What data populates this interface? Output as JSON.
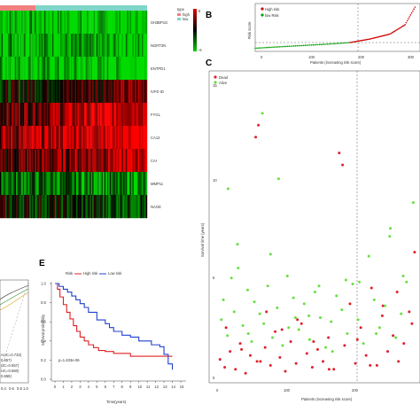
{
  "panels": {
    "a": {
      "genes": [
        "SH3BP1G",
        "NGRT3N",
        "ENTPD1",
        "IVFD ID",
        "FYGL",
        "CA12",
        "CAI",
        "MMP11",
        "NAGE"
      ],
      "annotation": {
        "title": "type",
        "items": [
          "high",
          "low"
        ]
      },
      "colorbar": {
        "top": "6",
        "bottom": "-6"
      },
      "colors": {
        "high_bar": "#f08080",
        "low_bar": "#7fd6c8",
        "green": "#00c000",
        "red": "#e00000"
      }
    },
    "b": {
      "letter": "B",
      "ylabel": "Risk score",
      "xlabel": "Patients (increasing risk score)",
      "legend": [
        "High risk",
        "low Risk"
      ],
      "xticks": [
        "0",
        "100",
        "200",
        "300"
      ]
    },
    "c": {
      "letter": "C",
      "ylabel": "Survival time (years)",
      "xlabel": "Patients (increasing risk score)",
      "legend": [
        "Dead",
        "Alive"
      ],
      "xticks": [
        "0",
        "100",
        "200"
      ],
      "yticks": [
        "0",
        "5",
        "10",
        "15"
      ]
    },
    "d": {
      "legend_lines": [
        "AUC=0.733)",
        "0.657)",
        "UC=0.657)",
        "UC=0.660)",
        "0.658)"
      ],
      "ticks": [
        "0.4",
        "0.6",
        "0.8",
        "1.0"
      ]
    },
    "e": {
      "letter": "E",
      "ylabel": "Survival probability",
      "xlabel": "Time(years)",
      "legend_title": "Risk",
      "legend": [
        "High risk",
        "Low risk"
      ],
      "pvalue": "p=1.403e-06",
      "xticks": [
        "0",
        "1",
        "2",
        "3",
        "4",
        "5",
        "6",
        "7",
        "8",
        "9",
        "10",
        "11",
        "12",
        "13",
        "14",
        "15"
      ],
      "yticks": [
        "0.0",
        "0.2",
        "0.4",
        "0.6",
        "0.8",
        "1.0"
      ]
    }
  },
  "chart_data": [
    {
      "type": "line",
      "title": "",
      "xlabel": "Patients (increasing risk score)",
      "ylabel": "Risk score",
      "series": [
        {
          "name": "low Risk",
          "color": "#00a000",
          "x": [
            0,
            50,
            100,
            150,
            190
          ],
          "y": [
            0.2,
            0.4,
            0.6,
            0.8,
            1.0
          ]
        },
        {
          "name": "High risk",
          "color": "#d00000",
          "x": [
            190,
            230,
            270,
            300,
            320
          ],
          "y": [
            1.0,
            1.5,
            2.2,
            3.5,
            6.0
          ]
        }
      ],
      "xlim": [
        0,
        330
      ],
      "cutoff_x": 190
    },
    {
      "type": "scatter",
      "title": "",
      "xlabel": "Patients (increasing risk score)",
      "ylabel": "Survival time (years)",
      "xlim": [
        0,
        300
      ],
      "ylim": [
        0,
        15
      ],
      "cutoff_x": 193,
      "series": [
        {
          "name": "Dead",
          "color": "#e0202a",
          "x": [
            3,
            10,
            18,
            26,
            33,
            41,
            48,
            56,
            60,
            63,
            70,
            78,
            85,
            92,
            100,
            108,
            116,
            124,
            132,
            140,
            148,
            156,
            164,
            172,
            180,
            188,
            196,
            204,
            212,
            220,
            228,
            236,
            244,
            252,
            260,
            268,
            276,
            284,
            292,
            12,
            35,
            58,
            72,
            95,
            118,
            142,
            165,
            185,
            207,
            226,
            245,
            266,
            288
          ],
          "y": [
            1.0,
            0.6,
            1.4,
            0.5,
            1.8,
            0.3,
            1.2,
            12.2,
            12.8,
            0.9,
            1.6,
            0.7,
            2.4,
            1.1,
            0.4,
            1.9,
            0.8,
            2.8,
            1.3,
            0.6,
            1.5,
            0.9,
            2.1,
            0.5,
            11.4,
            1.7,
            3.8,
            0.8,
            2.6,
            1.2,
            4.6,
            0.7,
            3.2,
            1.4,
            2.2,
            0.9,
            1.8,
            3.4,
            6.4,
            2.6,
            1.5,
            0.9,
            3.4,
            2.5,
            3.0,
            1.9,
            0.5,
            10.8,
            2.0,
            0.7,
            3.7,
            4.4,
            2.8
          ]
        },
        {
          "name": "Alive",
          "color": "#66e040",
          "x": [
            5,
            8,
            14,
            20,
            24,
            29,
            37,
            44,
            50,
            54,
            62,
            66,
            68,
            74,
            81,
            88,
            96,
            103,
            112,
            120,
            128,
            136,
            144,
            152,
            160,
            168,
            176,
            184,
            192,
            200,
            208,
            216,
            224,
            232,
            240,
            248,
            256,
            264,
            272,
            280,
            290,
            15,
            30,
            45,
            78,
            90,
            105,
            115,
            135,
            150,
            170,
            190,
            210,
            235,
            255,
            275
          ],
          "y": [
            3.0,
            4.0,
            2.2,
            5.1,
            3.4,
            6.8,
            2.7,
            4.5,
            1.9,
            3.9,
            3.3,
            13.4,
            2.8,
            4.7,
            2.1,
            3.6,
            1.7,
            5.2,
            4.1,
            2.5,
            3.8,
            2.0,
            4.4,
            3.1,
            1.6,
            2.9,
            4.2,
            3.5,
            2.3,
            4.8,
            3.0,
            1.8,
            6.2,
            4.0,
            2.6,
            3.7,
            7.6,
            2.1,
            3.3,
            4.9,
            8.9,
            9.6,
            5.6,
            2.3,
            6.3,
            10.1,
            2.6,
            3.1,
            3.2,
            4.7,
            1.4,
            5.0,
            4.9,
            2.3,
            7.2,
            5.2
          ]
        }
      ]
    },
    {
      "type": "line",
      "title": "",
      "xlabel": "Time(years)",
      "ylabel": "Survival probability",
      "xlim": [
        0,
        15
      ],
      "ylim": [
        0,
        1
      ],
      "series": [
        {
          "name": "High risk",
          "color": "#e02020",
          "x": [
            0,
            0.3,
            0.6,
            1,
            1.4,
            1.8,
            2.2,
            2.6,
            3,
            3.5,
            4,
            4.6,
            5.2,
            6,
            7,
            8,
            9,
            10,
            11,
            12,
            13,
            13.5,
            14
          ],
          "y": [
            1,
            0.94,
            0.86,
            0.78,
            0.7,
            0.63,
            0.56,
            0.5,
            0.44,
            0.4,
            0.36,
            0.33,
            0.3,
            0.29,
            0.27,
            0.27,
            0.24,
            0.24,
            0.24,
            0.24,
            0.24,
            0.24,
            0.24
          ]
        },
        {
          "name": "Low risk",
          "color": "#2040d0",
          "x": [
            0,
            0.5,
            1,
            1.5,
            2,
            2.5,
            3,
            3.5,
            4,
            5,
            6,
            6.5,
            7,
            8,
            9,
            10,
            11,
            11.5,
            12,
            12.5,
            13,
            13.5,
            14
          ],
          "y": [
            1,
            0.97,
            0.94,
            0.91,
            0.87,
            0.83,
            0.79,
            0.75,
            0.7,
            0.62,
            0.58,
            0.54,
            0.5,
            0.46,
            0.44,
            0.4,
            0.4,
            0.36,
            0.36,
            0.34,
            0.26,
            0.16,
            0.1
          ]
        }
      ]
    }
  ]
}
